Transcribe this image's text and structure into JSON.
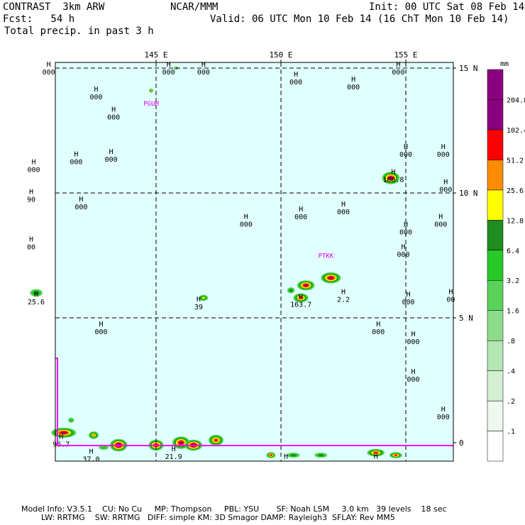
{
  "header": {
    "model": "CONTRAST  3km ARW",
    "center": "NCAR/MMM",
    "init": "Init: 00 UTC Sat 08 Feb 14",
    "fcst": "Fcst:   54 h",
    "valid": "Valid: 06 UTC Mon 10 Feb 14 (16 ChT Mon 10 Feb 14)",
    "field": "Total precip. in past 3 h"
  },
  "axes": {
    "lon_labels": [
      "145 E",
      "150 E",
      "155 E"
    ],
    "lat_labels": [
      "15 N",
      "10 N",
      "5 N",
      "0"
    ]
  },
  "legend": {
    "unit": "mm",
    "levels": [
      ".1",
      ".2",
      ".4",
      ".8",
      "1.6",
      "3.2",
      "6.4",
      "12.8",
      "25.6",
      "51.2",
      "102.4",
      "204.8"
    ],
    "colors": [
      "#ffffff",
      "#eef8ee",
      "#d4f0d4",
      "#b4e6b4",
      "#8cdc8c",
      "#5ad25a",
      "#28c828",
      "#1e8c1e",
      "#ffff00",
      "#ff8c00",
      "#ff0000",
      "#8b0080",
      "#8b0080"
    ]
  },
  "stations": [
    {
      "name": "PGUM",
      "lon": 144.8,
      "lat": 13.5
    },
    {
      "name": "PTKK",
      "lon": 151.8,
      "lat": 7.4
    }
  ],
  "pressure_centers": [
    {
      "lon": 140.7,
      "lat": 15.0,
      "value": "000"
    },
    {
      "lon": 142.6,
      "lat": 14.0,
      "value": "000"
    },
    {
      "lon": 143.3,
      "lat": 13.2,
      "value": "000"
    },
    {
      "lon": 145.5,
      "lat": 15.0,
      "value": "000"
    },
    {
      "lon": 146.9,
      "lat": 15.0,
      "value": "000"
    },
    {
      "lon": 150.6,
      "lat": 14.6,
      "value": "000"
    },
    {
      "lon": 152.9,
      "lat": 14.4,
      "value": "000"
    },
    {
      "lon": 154.7,
      "lat": 15.0,
      "value": "000"
    },
    {
      "lon": 140.1,
      "lat": 11.1,
      "value": "000"
    },
    {
      "lon": 141.8,
      "lat": 11.4,
      "value": "000"
    },
    {
      "lon": 143.2,
      "lat": 11.5,
      "value": "000"
    },
    {
      "lon": 140.0,
      "lat": 9.9,
      "value": "90"
    },
    {
      "lon": 142.0,
      "lat": 9.6,
      "value": "000"
    },
    {
      "lon": 148.6,
      "lat": 8.9,
      "value": "000"
    },
    {
      "lon": 150.8,
      "lat": 9.2,
      "value": "000"
    },
    {
      "lon": 152.5,
      "lat": 9.4,
      "value": "000"
    },
    {
      "lon": 154.5,
      "lat": 10.7,
      "value": "168.8"
    },
    {
      "lon": 155.0,
      "lat": 11.7,
      "value": "000"
    },
    {
      "lon": 156.5,
      "lat": 11.7,
      "value": "000"
    },
    {
      "lon": 156.6,
      "lat": 10.3,
      "value": "000"
    },
    {
      "lon": 156.4,
      "lat": 8.9,
      "value": "000"
    },
    {
      "lon": 155.0,
      "lat": 8.6,
      "value": "000"
    },
    {
      "lon": 154.9,
      "lat": 7.7,
      "value": "000"
    },
    {
      "lon": 140.0,
      "lat": 8.0,
      "value": "00"
    },
    {
      "lon": 140.2,
      "lat": 5.8,
      "value": "25.6"
    },
    {
      "lon": 146.7,
      "lat": 5.6,
      "value": "39"
    },
    {
      "lon": 150.8,
      "lat": 5.7,
      "value": "163.7"
    },
    {
      "lon": 152.5,
      "lat": 5.9,
      "value": "2.2"
    },
    {
      "lon": 155.1,
      "lat": 5.8,
      "value": "000"
    },
    {
      "lon": 156.8,
      "lat": 5.9,
      "value": "00"
    },
    {
      "lon": 142.8,
      "lat": 4.6,
      "value": "000"
    },
    {
      "lon": 153.9,
      "lat": 4.6,
      "value": "000"
    },
    {
      "lon": 155.3,
      "lat": 4.2,
      "value": "000"
    },
    {
      "lon": 155.3,
      "lat": 2.7,
      "value": "000"
    },
    {
      "lon": 156.5,
      "lat": 1.2,
      "value": "000"
    },
    {
      "lon": 141.2,
      "lat": 0.1,
      "value": "96.7"
    },
    {
      "lon": 142.4,
      "lat": -0.5,
      "value": "37.0"
    },
    {
      "lon": 145.7,
      "lat": -0.4,
      "value": "21.9"
    },
    {
      "lon": 150.2,
      "lat": -0.7,
      "value": ""
    },
    {
      "lon": 153.8,
      "lat": -0.7,
      "value": ""
    }
  ],
  "precip_cells": [
    {
      "lon": 154.4,
      "lat": 10.6,
      "peak": 102.4,
      "rx": 0.35,
      "ry": 0.25
    },
    {
      "lon": 151.0,
      "lat": 6.3,
      "peak": 102.4,
      "rx": 0.35,
      "ry": 0.2
    },
    {
      "lon": 152.0,
      "lat": 6.6,
      "peak": 102.4,
      "rx": 0.4,
      "ry": 0.22
    },
    {
      "lon": 150.8,
      "lat": 5.8,
      "peak": 51.2,
      "rx": 0.3,
      "ry": 0.18
    },
    {
      "lon": 150.4,
      "lat": 6.1,
      "peak": 6.4,
      "rx": 0.15,
      "ry": 0.12
    },
    {
      "lon": 146.9,
      "lat": 5.8,
      "peak": 12.8,
      "rx": 0.18,
      "ry": 0.12
    },
    {
      "lon": 140.2,
      "lat": 6.0,
      "peak": 6.4,
      "rx": 0.25,
      "ry": 0.15
    },
    {
      "lon": 141.3,
      "lat": 0.4,
      "peak": 102.4,
      "rx": 0.5,
      "ry": 0.2
    },
    {
      "lon": 141.6,
      "lat": 0.9,
      "peak": 3.2,
      "rx": 0.12,
      "ry": 0.1
    },
    {
      "lon": 142.5,
      "lat": 0.3,
      "peak": 25.6,
      "rx": 0.2,
      "ry": 0.15
    },
    {
      "lon": 143.5,
      "lat": -0.1,
      "peak": 204.8,
      "rx": 0.35,
      "ry": 0.25
    },
    {
      "lon": 145.0,
      "lat": -0.1,
      "peak": 102.4,
      "rx": 0.3,
      "ry": 0.22
    },
    {
      "lon": 146.0,
      "lat": 0.0,
      "peak": 102.4,
      "rx": 0.35,
      "ry": 0.25
    },
    {
      "lon": 146.5,
      "lat": -0.1,
      "peak": 204.8,
      "rx": 0.35,
      "ry": 0.22
    },
    {
      "lon": 147.4,
      "lat": 0.1,
      "peak": 51.2,
      "rx": 0.3,
      "ry": 0.22
    },
    {
      "lon": 142.9,
      "lat": -0.2,
      "peak": 3.2,
      "rx": 0.2,
      "ry": 0.08
    },
    {
      "lon": 149.6,
      "lat": -0.5,
      "peak": 51.2,
      "rx": 0.18,
      "ry": 0.12
    },
    {
      "lon": 150.5,
      "lat": -0.5,
      "peak": 6.4,
      "rx": 0.25,
      "ry": 0.1
    },
    {
      "lon": 151.6,
      "lat": -0.5,
      "peak": 6.4,
      "rx": 0.25,
      "ry": 0.1
    },
    {
      "lon": 153.8,
      "lat": -0.4,
      "peak": 51.2,
      "rx": 0.35,
      "ry": 0.15
    },
    {
      "lon": 154.6,
      "lat": -0.5,
      "peak": 51.2,
      "rx": 0.25,
      "ry": 0.12
    },
    {
      "lon": 144.8,
      "lat": 14.1,
      "peak": 25.6,
      "rx": 0.08,
      "ry": 0.08
    },
    {
      "lon": 145.8,
      "lat": 15.0,
      "peak": 12.8,
      "rx": 0.08,
      "ry": 0.06
    }
  ],
  "footer": {
    "line1": "Model Info: V3.5.1    CU: No Cu     MP: Thompson     PBL: YSU       SF: Noah LSM     3.0 km   39 levels    18 sec",
    "line2": "LW: RRTMG    SW: RRTMG   DIFF: simple KM: 3D Smagor DAMP: Rayleigh3  SFLAY: Rev MM5"
  }
}
